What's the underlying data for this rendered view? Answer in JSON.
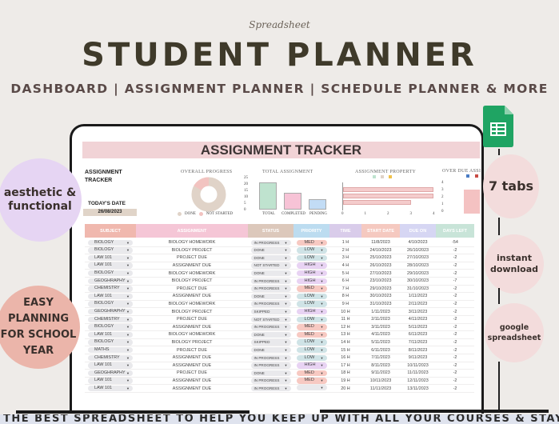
{
  "header": {
    "script": "Spreadsheet",
    "title": "STUDENT PLANNER",
    "subtitle": "DASHBOARD | ASSIGNMENT PLANNER | SCHEDULE PLANNER & MORE"
  },
  "badges": {
    "left": [
      "aesthetic & functional",
      "EASY PLANNING FOR SCHOOL YEAR"
    ],
    "right": [
      "7 tabs",
      "instant download",
      "google spreadsheet"
    ],
    "colors": {
      "lavender": "#e6d5f3",
      "salmon": "#ebb5aa",
      "pink": "#f3dcdc",
      "sheets_green": "#1fa463"
    }
  },
  "banner": "THE BEST SPREADSHEET TO HELP YOU KEEP UP WITH ALL YOUR COURSES & STAY ORGANIZED",
  "sheet": {
    "title": "ASSIGNMENT TRACKER",
    "side_label": "ASSIGNMENT TRACKER",
    "date_label": "TODAY'S DATE",
    "date_value": "26/08/2023",
    "charts": {
      "overall_progress": {
        "title": "OVERALL PROGRESS",
        "legend": [
          "DONE",
          "NOT STARTED"
        ],
        "colors": [
          "#e0d3c8",
          "#f2c3c0"
        ]
      },
      "total_assignment": {
        "title": "TOTAL ASSIGNMENT",
        "categories": [
          "TOTAL",
          "COMPLETED",
          "PENDING"
        ],
        "values": [
          21,
          13,
          8
        ],
        "yticks": [
          "25",
          "20",
          "15",
          "10",
          "5",
          "0"
        ],
        "colors": [
          "#bfe3cf",
          "#f7c3d6",
          "#c2dcf5"
        ]
      },
      "assignment_property": {
        "title": "ASSIGNMENT PROPERTY",
        "values": [
          4,
          4,
          3
        ],
        "xticks": [
          "0",
          "1",
          "2",
          "3",
          "4"
        ]
      },
      "over_due": {
        "title": "OVER DUE ASSI",
        "yticks": [
          "4",
          "3",
          "2",
          "1",
          "0"
        ],
        "values": [
          3
        ]
      }
    },
    "columns": [
      "SUBJECT",
      "ASSIGNMENT",
      "STATUS",
      "PRIORITY",
      "TIME",
      "START DATE",
      "DUE ON",
      "DAYS LEFT"
    ],
    "header_colors": [
      "#f0b8ae",
      "#f5c6d6",
      "#dcc8bb",
      "#bcdcf0",
      "#d9ccea",
      "#f5c9c0",
      "#d6d6f3",
      "#c8e4d8"
    ],
    "priority_colors": {
      "MED": "#f7c9c2",
      "LOW": "#cfe3e6",
      "HIGH": "#e8d3f3",
      "": "#e9e9ec"
    },
    "rows": [
      [
        "BIOLOGY",
        "BIOLOGY HOMEWORK",
        "IN PROGRESS",
        "MED",
        "1 H",
        "11/8/2023",
        "4/10/2023",
        "-54"
      ],
      [
        "BIOLOGY",
        "BIOLOGY PROJECT",
        "DONE",
        "LOW",
        "2 H",
        "24/10/2023",
        "26/10/2023",
        "-2"
      ],
      [
        "LAW 101",
        "PROJECT DUE",
        "DONE",
        "LOW",
        "3 H",
        "25/10/2023",
        "27/10/2023",
        "-2"
      ],
      [
        "LAW 101",
        "ASSIGNMENT DUE",
        "NOT STARTED",
        "HIGH",
        "4 H",
        "26/10/2023",
        "28/10/2023",
        "-2"
      ],
      [
        "BIOLOGY",
        "BIOLOGY HOMEWORK",
        "DONE",
        "HIGH",
        "5 H",
        "27/10/2023",
        "29/10/2023",
        "-2"
      ],
      [
        "GEOGHRAPHY",
        "BIOLOGY PROJECT",
        "IN PROGRESS",
        "HIGH",
        "6 H",
        "23/10/2023",
        "30/10/2023",
        "-7"
      ],
      [
        "CHEMISTRY",
        "PROJECT DUE",
        "IN PROGRESS",
        "MED",
        "7 H",
        "29/10/2023",
        "31/10/2023",
        "-2"
      ],
      [
        "LAW 101",
        "ASSIGNMENT DUE",
        "DONE",
        "LOW",
        "8 H",
        "30/10/2023",
        "1/11/2023",
        "-2"
      ],
      [
        "BIOLOGY",
        "BIOLOGY HOMEWORK",
        "IN PROGRESS",
        "LOW",
        "9 H",
        "31/10/2023",
        "2/11/2023",
        "-2"
      ],
      [
        "GEOGHRAPHY",
        "BIOLOGY PROJECT",
        "SKIPPED",
        "HIGH",
        "10 H",
        "1/11/2023",
        "3/11/2023",
        "-2"
      ],
      [
        "CHEMISTRY",
        "PROJECT DUE",
        "NOT STARTED",
        "LOW",
        "11 H",
        "2/11/2023",
        "4/11/2023",
        "-2"
      ],
      [
        "BIOLOGY",
        "ASSIGNMENT DUE",
        "IN PROGRESS",
        "MED",
        "12 H",
        "3/11/2023",
        "5/11/2023",
        "-2"
      ],
      [
        "LAW 101",
        "BIOLOGY HOMEWORK",
        "DONE",
        "MED",
        "13 H",
        "4/11/2023",
        "6/11/2023",
        "-2"
      ],
      [
        "BIOLOGY",
        "BIOLOGY PROJECT",
        "SKIPPED",
        "LOW",
        "14 H",
        "5/11/2023",
        "7/11/2023",
        "-2"
      ],
      [
        "MATHS",
        "PROJECT DUE",
        "DONE",
        "LOW",
        "15 H",
        "6/11/2023",
        "8/11/2023",
        "-2"
      ],
      [
        "CHEMISTRY",
        "ASSIGNMENT DUE",
        "IN PROGRESS",
        "LOW",
        "16 H",
        "7/11/2023",
        "9/11/2023",
        "-2"
      ],
      [
        "LAW 101",
        "ASSIGNMENT DUE",
        "IN PROGRESS",
        "HIGH",
        "17 H",
        "8/11/2023",
        "10/11/2023",
        "-2"
      ],
      [
        "GEOGHRAPHY",
        "PROJECT DUE",
        "DONE",
        "MED",
        "18 H",
        "9/11/2023",
        "11/11/2023",
        "-2"
      ],
      [
        "LAW 101",
        "ASSIGNMENT DUE",
        "IN PROGRESS",
        "MED",
        "19 H",
        "10/11/2023",
        "12/11/2023",
        "-2"
      ],
      [
        "LAW 101",
        "ASSIGNMENT DUE",
        "IN PROGRESS",
        "",
        "20 H",
        "11/11/2023",
        "13/11/2023",
        "-2"
      ]
    ]
  }
}
